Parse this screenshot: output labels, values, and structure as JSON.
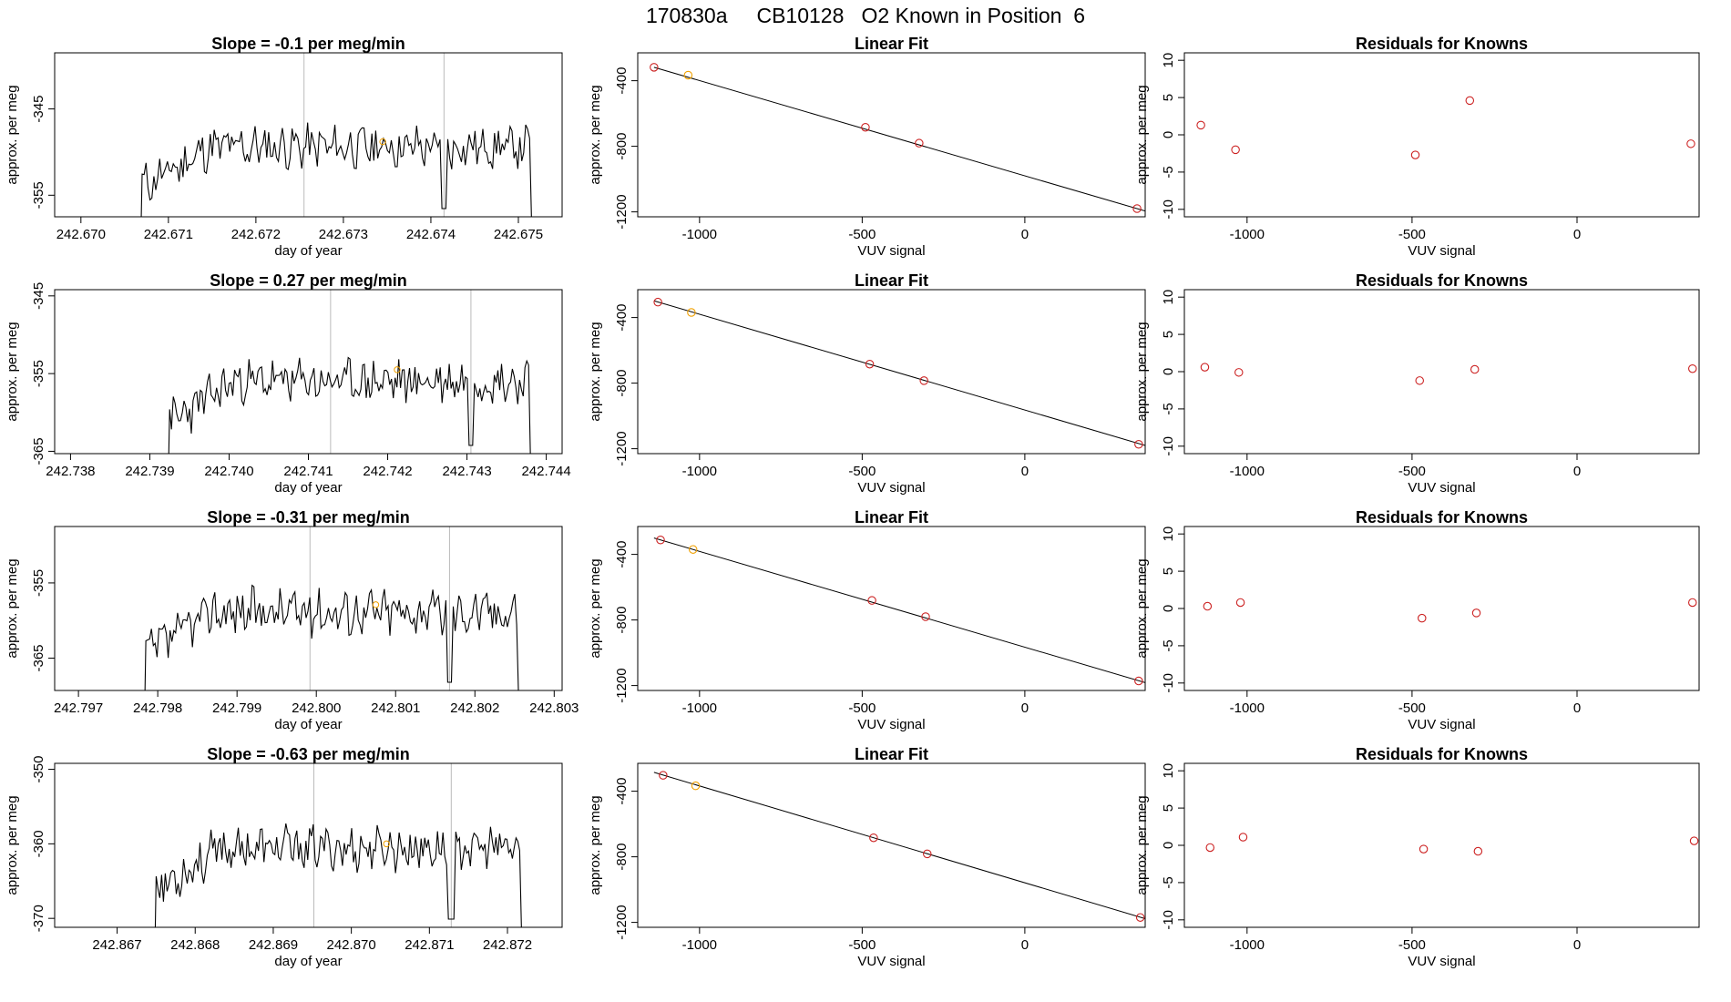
{
  "figure": {
    "title": "170830a     CB10128   O2 Known in Position  6"
  },
  "chart_data": [
    {
      "type": "line",
      "row": 1,
      "column": "time",
      "title": "Slope =  -0.1  per meg/min",
      "xlabel": "day of year",
      "ylabel": "approx. per meg",
      "xlim": [
        242.6697,
        242.6755
      ],
      "ylim": [
        -357.5,
        -338.5
      ],
      "x_ticks": [
        "242.670",
        "242.671",
        "242.672",
        "242.673",
        "242.674",
        "242.675"
      ],
      "x_tick_values": [
        242.67,
        242.671,
        242.672,
        242.673,
        242.674,
        242.675
      ],
      "y_ticks": [
        "-345",
        "-355"
      ],
      "y_tick_values": [
        -345,
        -355
      ],
      "trace": {
        "start": 242.6707,
        "end": 242.67515,
        "base": -349.4,
        "amplitude": 2.1,
        "seed": 11,
        "drop1": 242.67414
      },
      "marker_lines": [
        242.67255,
        242.67415
      ],
      "highlight_point": [
        242.67345,
        -348.8
      ],
      "colors": {
        "line": "#000000",
        "marker_line": "#bbbbbb",
        "highlight": "#f0a000"
      }
    },
    {
      "type": "scatter",
      "row": 1,
      "column": "fit",
      "title": "Linear Fit",
      "xlabel": "VUV signal",
      "ylabel": "approx. per meg",
      "xlim": [
        -1190,
        370
      ],
      "ylim": [
        -1230,
        -230
      ],
      "x_ticks": [
        "-1000",
        "-500",
        "0"
      ],
      "x_tick_values": [
        -1000,
        -500,
        0
      ],
      "y_ticks": [
        "-400",
        "-800",
        "-1200"
      ],
      "y_tick_values": [
        -400,
        -800,
        -1200
      ],
      "points": [
        [
          -1140,
          -318
        ],
        [
          -1035,
          -366
        ],
        [
          -490,
          -684
        ],
        [
          -325,
          -781
        ],
        [
          345,
          -1180
        ]
      ],
      "highlight_index": 1,
      "fit_line": {
        "x": [
          -1140,
          370
        ],
        "y": [
          -318,
          -1195
        ]
      },
      "colors": {
        "point": "#cc2222",
        "highlight": "#f0a000",
        "line": "#000000"
      }
    },
    {
      "type": "scatter",
      "row": 1,
      "column": "residuals",
      "title": "Residuals for Knowns",
      "xlabel": "VUV signal",
      "ylabel": "approx. per meg",
      "xlim": [
        -1190,
        370
      ],
      "ylim": [
        -11,
        11
      ],
      "x_ticks": [
        "-1000",
        "-500",
        "0"
      ],
      "x_tick_values": [
        -1000,
        -500,
        0
      ],
      "y_ticks": [
        "-10",
        "-5",
        "0",
        "5",
        "10"
      ],
      "y_tick_values": [
        -10,
        -5,
        0,
        5,
        10
      ],
      "points": [
        [
          -1140,
          1.3
        ],
        [
          -1035,
          -2.0
        ],
        [
          -490,
          -2.7
        ],
        [
          -325,
          4.6
        ],
        [
          345,
          -1.2
        ]
      ],
      "colors": {
        "point": "#cc2222"
      }
    },
    {
      "type": "line",
      "row": 2,
      "column": "time",
      "title": "Slope =  0.27  per meg/min",
      "xlabel": "day of year",
      "ylabel": "approx. per meg",
      "xlim": [
        242.7378,
        242.7442
      ],
      "ylim": [
        -365.3,
        -344.2
      ],
      "x_ticks": [
        "242.738",
        "242.739",
        "242.740",
        "242.741",
        "242.742",
        "242.743",
        "242.744"
      ],
      "x_tick_values": [
        242.738,
        242.739,
        242.74,
        242.741,
        242.742,
        242.743,
        242.744
      ],
      "y_ticks": [
        "-345",
        "-355",
        "-365"
      ],
      "y_tick_values": [
        -345,
        -355,
        -365
      ],
      "trace": {
        "start": 242.73925,
        "end": 242.7438,
        "base": -356.0,
        "amplitude": 2.4,
        "seed": 23,
        "drop1": 242.74305
      },
      "marker_lines": [
        242.74128,
        242.74305
      ],
      "highlight_point": [
        242.74212,
        -354.5
      ],
      "colors": {
        "line": "#000000",
        "marker_line": "#bbbbbb",
        "highlight": "#f0a000"
      }
    },
    {
      "type": "scatter",
      "row": 2,
      "column": "fit",
      "title": "Linear Fit",
      "xlabel": "VUV signal",
      "ylabel": "approx. per meg",
      "xlim": [
        -1190,
        370
      ],
      "ylim": [
        -1230,
        -230
      ],
      "x_ticks": [
        "-1000",
        "-500",
        "0"
      ],
      "x_tick_values": [
        -1000,
        -500,
        0
      ],
      "y_ticks": [
        "-400",
        "-800",
        "-1200"
      ],
      "y_tick_values": [
        -400,
        -800,
        -1200
      ],
      "points": [
        [
          -1128,
          -306
        ],
        [
          -1025,
          -369
        ],
        [
          -477,
          -684
        ],
        [
          -310,
          -785
        ],
        [
          350,
          -1173
        ]
      ],
      "highlight_index": 1,
      "fit_line": {
        "x": [
          -1140,
          370
        ],
        "y": [
          -298,
          -1180
        ]
      },
      "colors": {
        "point": "#cc2222",
        "highlight": "#f0a000",
        "line": "#000000"
      }
    },
    {
      "type": "scatter",
      "row": 2,
      "column": "residuals",
      "title": "Residuals for Knowns",
      "xlabel": "VUV signal",
      "ylabel": "approx. per meg",
      "xlim": [
        -1190,
        370
      ],
      "ylim": [
        -11,
        11
      ],
      "x_ticks": [
        "-1000",
        "-500",
        "0"
      ],
      "x_tick_values": [
        -1000,
        -500,
        0
      ],
      "y_ticks": [
        "-10",
        "-5",
        "0",
        "5",
        "10"
      ],
      "y_tick_values": [
        -10,
        -5,
        0,
        5,
        10
      ],
      "points": [
        [
          -1128,
          0.6
        ],
        [
          -1025,
          -0.1
        ],
        [
          -477,
          -1.2
        ],
        [
          -310,
          0.3
        ],
        [
          350,
          0.4
        ]
      ],
      "colors": {
        "point": "#cc2222"
      }
    },
    {
      "type": "line",
      "row": 3,
      "column": "time",
      "title": "Slope =  -0.31  per meg/min",
      "xlabel": "day of year",
      "ylabel": "approx. per meg",
      "xlim": [
        242.7967,
        242.8031
      ],
      "ylim": [
        -369.3,
        -347.5
      ],
      "x_ticks": [
        "242.797",
        "242.798",
        "242.799",
        "242.800",
        "242.801",
        "242.802",
        "242.803"
      ],
      "x_tick_values": [
        242.797,
        242.798,
        242.799,
        242.8,
        242.801,
        242.802,
        242.803
      ],
      "y_ticks": [
        "-355",
        "-365"
      ],
      "y_tick_values": [
        -355,
        -365
      ],
      "trace": {
        "start": 242.79785,
        "end": 242.80255,
        "base": -358.8,
        "amplitude": 2.6,
        "seed": 37,
        "drop1": 242.80168
      },
      "marker_lines": [
        242.79992,
        242.80168
      ],
      "highlight_point": [
        242.80075,
        -357.9
      ],
      "colors": {
        "line": "#000000",
        "marker_line": "#bbbbbb",
        "highlight": "#f0a000"
      }
    },
    {
      "type": "scatter",
      "row": 3,
      "column": "fit",
      "title": "Linear Fit",
      "xlabel": "VUV signal",
      "ylabel": "approx. per meg",
      "xlim": [
        -1190,
        370
      ],
      "ylim": [
        -1230,
        -230
      ],
      "x_ticks": [
        "-1000",
        "-500",
        "0"
      ],
      "x_tick_values": [
        -1000,
        -500,
        0
      ],
      "y_ticks": [
        "-400",
        "-800",
        "-1200"
      ],
      "y_tick_values": [
        -400,
        -800,
        -1200
      ],
      "points": [
        [
          -1120,
          -312
        ],
        [
          -1020,
          -370
        ],
        [
          -470,
          -681
        ],
        [
          -305,
          -780
        ],
        [
          350,
          -1172
        ]
      ],
      "highlight_index": 1,
      "fit_line": {
        "x": [
          -1140,
          370
        ],
        "y": [
          -300,
          -1182
        ]
      },
      "colors": {
        "point": "#cc2222",
        "highlight": "#f0a000",
        "line": "#000000"
      }
    },
    {
      "type": "scatter",
      "row": 3,
      "column": "residuals",
      "title": "Residuals for Knowns",
      "xlabel": "VUV signal",
      "ylabel": "approx. per meg",
      "xlim": [
        -1190,
        370
      ],
      "ylim": [
        -11,
        11
      ],
      "x_ticks": [
        "-1000",
        "-500",
        "0"
      ],
      "x_tick_values": [
        -1000,
        -500,
        0
      ],
      "y_ticks": [
        "-10",
        "-5",
        "0",
        "5",
        "10"
      ],
      "y_tick_values": [
        -10,
        -5,
        0,
        5,
        10
      ],
      "points": [
        [
          -1120,
          0.3
        ],
        [
          -1020,
          0.8
        ],
        [
          -470,
          -1.3
        ],
        [
          -305,
          -0.6
        ],
        [
          350,
          0.8
        ]
      ],
      "colors": {
        "point": "#cc2222"
      }
    },
    {
      "type": "line",
      "row": 4,
      "column": "time",
      "title": "Slope =  -0.63  per meg/min",
      "xlabel": "day of year",
      "ylabel": "approx. per meg",
      "xlim": [
        242.8662,
        242.8727
      ],
      "ylim": [
        -371.2,
        -349.2
      ],
      "x_ticks": [
        "242.867",
        "242.868",
        "242.869",
        "242.870",
        "242.871",
        "242.872"
      ],
      "x_tick_values": [
        242.867,
        242.868,
        242.869,
        242.87,
        242.871,
        242.872
      ],
      "y_ticks": [
        "-350",
        "-360",
        "-370"
      ],
      "y_tick_values": [
        -350,
        -360,
        -370
      ],
      "trace": {
        "start": 242.8675,
        "end": 242.87218,
        "base": -360.6,
        "amplitude": 2.5,
        "seed": 53,
        "drop1": 242.87128
      },
      "marker_lines": [
        242.86952,
        242.87128
      ],
      "highlight_point": [
        242.87045,
        -360.0
      ],
      "colors": {
        "line": "#000000",
        "marker_line": "#bbbbbb",
        "highlight": "#f0a000"
      }
    },
    {
      "type": "scatter",
      "row": 4,
      "column": "fit",
      "title": "Linear Fit",
      "xlabel": "VUV signal",
      "ylabel": "approx. per meg",
      "xlim": [
        -1190,
        370
      ],
      "ylim": [
        -1230,
        -230
      ],
      "x_ticks": [
        "-1000",
        "-500",
        "0"
      ],
      "x_tick_values": [
        -1000,
        -500,
        0
      ],
      "y_ticks": [
        "-400",
        "-800",
        "-1200"
      ],
      "y_tick_values": [
        -400,
        -800,
        -1200
      ],
      "points": [
        [
          -1112,
          -303
        ],
        [
          -1012,
          -367
        ],
        [
          -465,
          -684
        ],
        [
          -300,
          -782
        ],
        [
          355,
          -1170
        ]
      ],
      "highlight_index": 1,
      "fit_line": {
        "x": [
          -1140,
          370
        ],
        "y": [
          -285,
          -1177
        ]
      },
      "colors": {
        "point": "#cc2222",
        "highlight": "#f0a000",
        "line": "#000000"
      }
    },
    {
      "type": "scatter",
      "row": 4,
      "column": "residuals",
      "title": "Residuals for Knowns",
      "xlabel": "VUV signal",
      "ylabel": "approx. per meg",
      "xlim": [
        -1190,
        370
      ],
      "ylim": [
        -11,
        11
      ],
      "x_ticks": [
        "-1000",
        "-500",
        "0"
      ],
      "x_tick_values": [
        -1000,
        -500,
        0
      ],
      "y_ticks": [
        "-10",
        "-5",
        "0",
        "5",
        "10"
      ],
      "y_tick_values": [
        -10,
        -5,
        0,
        5,
        10
      ],
      "points": [
        [
          -1112,
          -0.3
        ],
        [
          -1012,
          1.1
        ],
        [
          -465,
          -0.5
        ],
        [
          -300,
          -0.8
        ],
        [
          355,
          0.6
        ]
      ],
      "colors": {
        "point": "#cc2222"
      }
    }
  ]
}
